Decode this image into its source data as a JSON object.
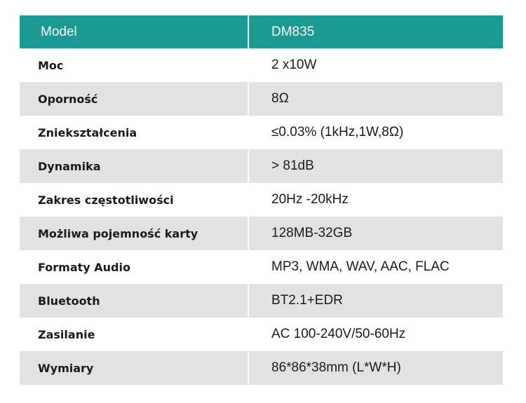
{
  "table": {
    "header": {
      "label": "Model",
      "value": "DM835"
    },
    "rows": [
      {
        "label": "Moc",
        "value": "2 x10W"
      },
      {
        "label": "Oporność",
        "value": "8Ω"
      },
      {
        "label": "Zniekształcenia",
        "value": "≤0.03% (1kHz,1W,8Ω)"
      },
      {
        "label": "Dynamika",
        "value": "> 81dB"
      },
      {
        "label": "Zakres częstotliwości",
        "value": "20Hz -20kHz"
      },
      {
        "label": "Możliwa pojemność karty",
        "value": "128MB-32GB"
      },
      {
        "label": "Formaty Audio",
        "value": "MP3, WMA, WAV, AAC, FLAC"
      },
      {
        "label": "Bluetooth",
        "value": "BT2.1+EDR"
      },
      {
        "label": "Zasilanie",
        "value": "AC 100-240V/50-60Hz"
      },
      {
        "label": "Wymiary",
        "value": "86*86*38mm (L*W*H)"
      }
    ]
  },
  "colors": {
    "header_bg": "#1a9a93",
    "alt_row_bg": "#e2e2e2",
    "text": "#1a1a1a"
  }
}
